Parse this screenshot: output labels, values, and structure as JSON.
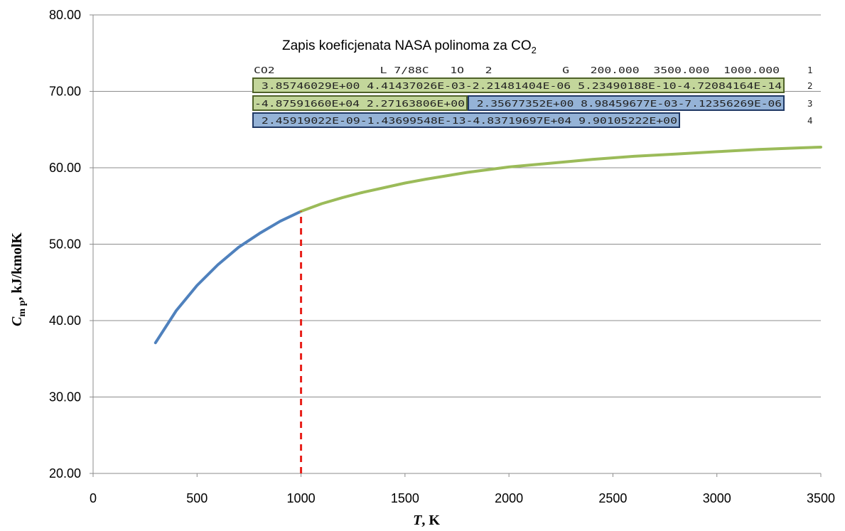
{
  "chart_data": {
    "type": "line",
    "xlabel_italic": "T",
    "xlabel_rest": ", K",
    "ylabel_italic": "C",
    "ylabel_sub": "m p",
    "ylabel_rest": ", kJ/kmolK",
    "xlim": [
      0,
      3500
    ],
    "ylim": [
      20,
      80
    ],
    "x_ticks": [
      "0",
      "500",
      "1000",
      "1500",
      "2000",
      "2500",
      "3000",
      "3500"
    ],
    "y_ticks": [
      "20.00",
      "30.00",
      "40.00",
      "50.00",
      "60.00",
      "70.00",
      "80.00"
    ],
    "grid": "horizontal",
    "colors": {
      "low": "#4f81bd",
      "high": "#9bbb59",
      "marker": "#e8201a",
      "green_fill": "#c3d69b",
      "blue_fill": "#95b3d7",
      "green_edge": "#4f6228",
      "blue_edge": "#1f3864"
    },
    "series": [
      {
        "x": [
          300,
          400,
          500,
          600,
          700,
          800,
          900,
          1000
        ],
        "y": [
          37.1,
          41.3,
          44.6,
          47.3,
          49.6,
          51.4,
          53.0,
          54.3
        ]
      },
      {
        "x": [
          1000,
          1100,
          1200,
          1300,
          1400,
          1500,
          1600,
          1800,
          2000,
          2200,
          2400,
          2600,
          2800,
          3000,
          3200,
          3400,
          3500
        ],
        "y": [
          54.3,
          55.3,
          56.1,
          56.8,
          57.4,
          58.0,
          58.5,
          59.4,
          60.1,
          60.6,
          61.1,
          61.5,
          61.8,
          62.1,
          62.4,
          62.6,
          62.7
        ]
      }
    ],
    "vline": {
      "x": 1000,
      "y_from": 20,
      "y_to": 54.3
    },
    "annotation": {
      "title_main": "Zapis koeficjenata NASA polinoma za CO",
      "title_sub": "2",
      "line1": {
        "text": "CO2               L 7/88C   1O   2          G   200.000  3500.000  1000.000",
        "num": "1"
      },
      "line2": {
        "green": " 3.85746029E+00 4.41437026E-03-2.21481404E-06 5.23490188E-10-4.72084164E-14",
        "num": "2"
      },
      "line3": {
        "green": "-4.87591660E+04 2.27163806E+00",
        "blue": " 2.35677352E+00 8.98459677E-03-7.12356269E-06",
        "num": "3"
      },
      "line4": {
        "blue": " 2.45919022E-09-1.43699548E-13-4.83719697E+04 9.90105222E+00",
        "num": "4"
      }
    }
  }
}
